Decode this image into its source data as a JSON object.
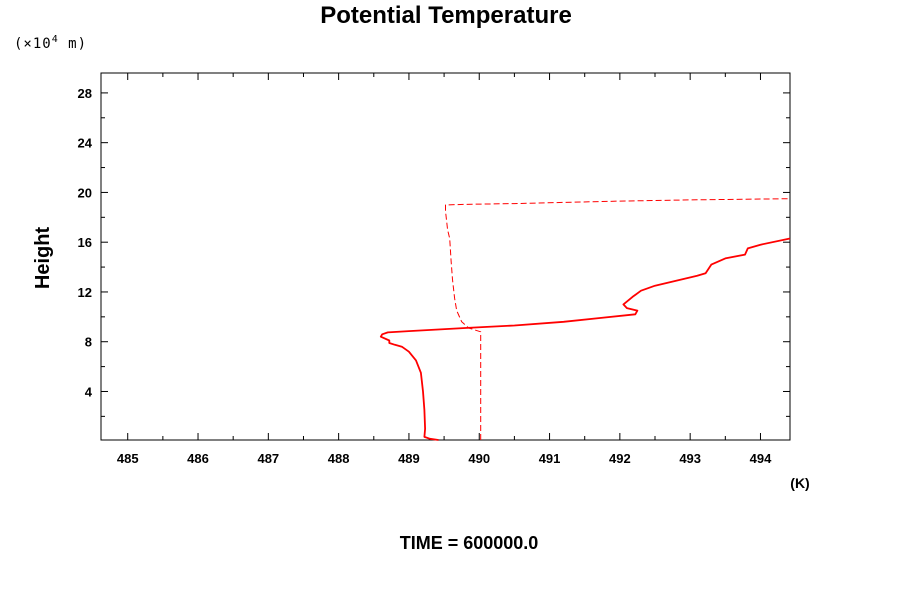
{
  "chart_data": {
    "type": "line",
    "title": "Potential Temperature",
    "ylabel": "Height",
    "y_unit_prefix": "(×10",
    "y_unit_exp": "4",
    "y_unit_suffix": " m)",
    "x_unit": "(K)",
    "footer": "TIME = 600000.0",
    "xlim": [
      484.62,
      494.42
    ],
    "ylim": [
      0.1,
      29.6
    ],
    "x_ticks": [
      485,
      486,
      487,
      488,
      489,
      490,
      491,
      492,
      493,
      494
    ],
    "x_tick_labels": [
      "485",
      "486",
      "487",
      "488",
      "489",
      "490",
      "491",
      "492",
      "493",
      "494"
    ],
    "y_ticks": [
      4,
      8,
      12,
      16,
      20,
      24,
      28
    ],
    "y_tick_labels": [
      "4",
      "8",
      "12",
      "16",
      "20",
      "24",
      "28"
    ],
    "grid": false,
    "series": [
      {
        "style": "solid",
        "color": "#ff0000",
        "points": [
          [
            489.42,
            0.1
          ],
          [
            489.3,
            0.2
          ],
          [
            489.22,
            0.35
          ],
          [
            489.23,
            1.0
          ],
          [
            489.22,
            2.5
          ],
          [
            489.2,
            4.0
          ],
          [
            489.17,
            5.5
          ],
          [
            489.1,
            6.5
          ],
          [
            489.0,
            7.2
          ],
          [
            488.9,
            7.6
          ],
          [
            488.8,
            7.75
          ],
          [
            488.72,
            7.9
          ],
          [
            488.72,
            8.1
          ],
          [
            488.6,
            8.4
          ],
          [
            488.62,
            8.6
          ],
          [
            488.7,
            8.75
          ],
          [
            489.0,
            8.85
          ],
          [
            489.8,
            9.1
          ],
          [
            490.5,
            9.3
          ],
          [
            491.2,
            9.6
          ],
          [
            491.7,
            9.9
          ],
          [
            492.22,
            10.2
          ],
          [
            492.25,
            10.5
          ],
          [
            492.1,
            10.7
          ],
          [
            492.05,
            11.0
          ],
          [
            492.18,
            11.6
          ],
          [
            492.3,
            12.1
          ],
          [
            492.5,
            12.5
          ],
          [
            492.8,
            12.9
          ],
          [
            493.1,
            13.3
          ],
          [
            493.22,
            13.5
          ],
          [
            493.3,
            14.2
          ],
          [
            493.5,
            14.7
          ],
          [
            493.78,
            15.0
          ],
          [
            493.82,
            15.5
          ],
          [
            494.0,
            15.8
          ],
          [
            494.42,
            16.3
          ]
        ]
      },
      {
        "style": "dashed",
        "color": "#ff0000",
        "points": [
          [
            490.02,
            0.1
          ],
          [
            490.02,
            4.0
          ],
          [
            490.02,
            7.0
          ],
          [
            490.02,
            8.8
          ],
          [
            489.85,
            9.1
          ],
          [
            489.75,
            9.6
          ],
          [
            489.68,
            10.5
          ],
          [
            489.65,
            11.5
          ],
          [
            489.62,
            13.0
          ],
          [
            489.6,
            14.5
          ],
          [
            489.58,
            16.3
          ],
          [
            489.55,
            17.0
          ],
          [
            489.52,
            18.5
          ],
          [
            489.52,
            19.0
          ],
          [
            489.9,
            19.05
          ],
          [
            490.5,
            19.1
          ],
          [
            491.2,
            19.2
          ],
          [
            492.0,
            19.3
          ],
          [
            493.0,
            19.4
          ],
          [
            494.42,
            19.5
          ]
        ]
      }
    ]
  }
}
